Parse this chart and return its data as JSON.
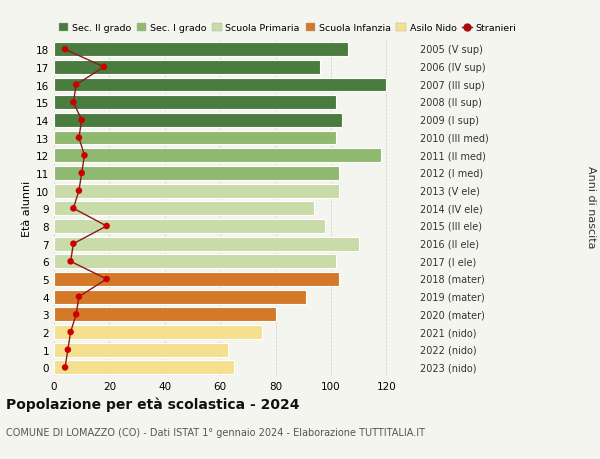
{
  "ages": [
    0,
    1,
    2,
    3,
    4,
    5,
    6,
    7,
    8,
    9,
    10,
    11,
    12,
    13,
    14,
    15,
    16,
    17,
    18
  ],
  "years": [
    "2023 (nido)",
    "2022 (nido)",
    "2021 (nido)",
    "2020 (mater)",
    "2019 (mater)",
    "2018 (mater)",
    "2017 (I ele)",
    "2016 (II ele)",
    "2015 (III ele)",
    "2014 (IV ele)",
    "2013 (V ele)",
    "2012 (I med)",
    "2011 (II med)",
    "2010 (III med)",
    "2009 (I sup)",
    "2008 (II sup)",
    "2007 (III sup)",
    "2006 (IV sup)",
    "2005 (V sup)"
  ],
  "bar_values": [
    65,
    63,
    75,
    80,
    91,
    103,
    102,
    110,
    98,
    94,
    103,
    103,
    118,
    102,
    104,
    102,
    120,
    96,
    106
  ],
  "stranieri": [
    4,
    5,
    6,
    8,
    9,
    19,
    6,
    7,
    19,
    7,
    9,
    10,
    11,
    9,
    10,
    7,
    8,
    18,
    4
  ],
  "bar_colors": [
    "#f5e090",
    "#f5e090",
    "#f5e090",
    "#d4792a",
    "#d4792a",
    "#d4792a",
    "#c8dba8",
    "#c8dba8",
    "#c8dba8",
    "#c8dba8",
    "#c8dba8",
    "#8fb870",
    "#8fb870",
    "#8fb870",
    "#4a7c3f",
    "#4a7c3f",
    "#4a7c3f",
    "#4a7c3f",
    "#4a7c3f"
  ],
  "legend_labels": [
    "Sec. II grado",
    "Sec. I grado",
    "Scuola Primaria",
    "Scuola Infanzia",
    "Asilo Nido",
    "Stranieri"
  ],
  "legend_colors": [
    "#4a7c3f",
    "#8fb870",
    "#c8dba8",
    "#d4792a",
    "#f5e090",
    "#cc0000"
  ],
  "title": "Popolazione per età scolastica - 2024",
  "subtitle": "COMUNE DI LOMAZZO (CO) - Dati ISTAT 1° gennaio 2024 - Elaborazione TUTTITALIA.IT",
  "ylabel_left": "Età alunni",
  "ylabel_right": "Anni di nascita",
  "xlim": [
    0,
    130
  ],
  "xticks": [
    0,
    20,
    40,
    60,
    80,
    100,
    120
  ],
  "background_color": "#f5f5f0",
  "bar_height": 0.78,
  "stranieri_line_color": "#8b1a1a",
  "stranieri_dot_color": "#cc0000",
  "grid_color": "#cccccc"
}
